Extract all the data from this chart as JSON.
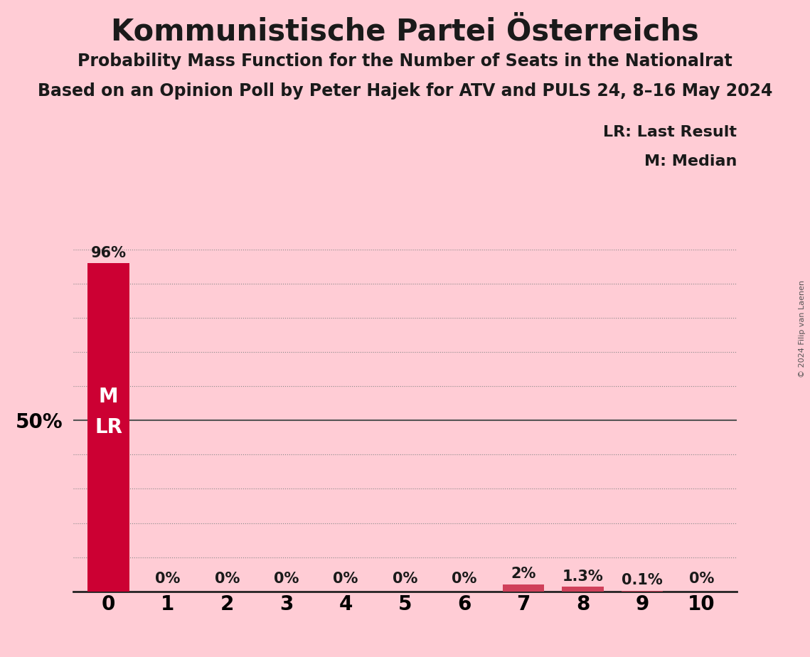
{
  "title": "Kommunistische Partei Österreichs",
  "subtitle": "Probability Mass Function for the Number of Seats in the Nationalrat",
  "subsubtitle": "Based on an Opinion Poll by Peter Hajek for ATV and PULS 24, 8–16 May 2024",
  "copyright": "© 2024 Filip van Laenen",
  "categories": [
    0,
    1,
    2,
    3,
    4,
    5,
    6,
    7,
    8,
    9,
    10
  ],
  "values": [
    96,
    0,
    0,
    0,
    0,
    0,
    0,
    2.0,
    1.3,
    0.1,
    0
  ],
  "bar_labels": [
    "96%",
    "0%",
    "0%",
    "0%",
    "0%",
    "0%",
    "0%",
    "2%",
    "1.3%",
    "0.1%",
    "0%"
  ],
  "bar_color_main": "#CC0033",
  "bar_color_small": "#D0405A",
  "background_color": "#FFCCD5",
  "median_seat": 0,
  "last_result_seat": 0,
  "legend_lr": "LR: Last Result",
  "legend_m": "M: Median",
  "ylim_max": 100
}
